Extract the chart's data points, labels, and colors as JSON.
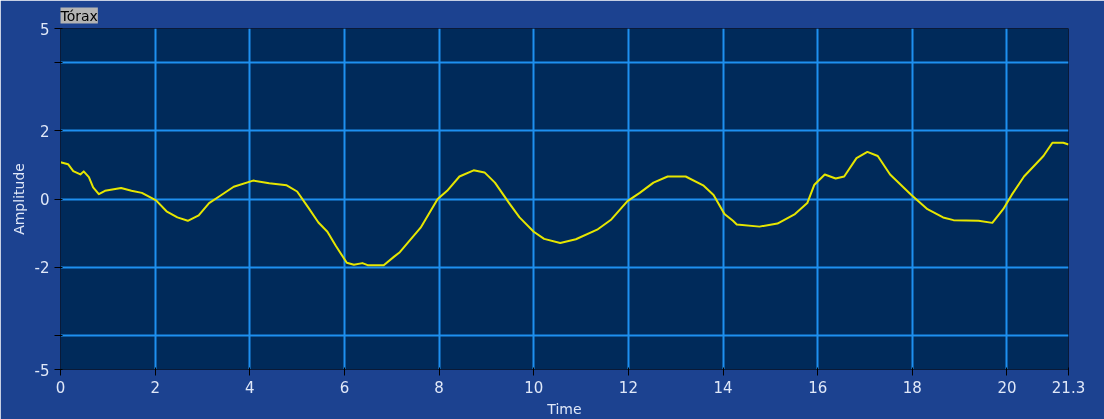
{
  "chart_data": {
    "type": "line",
    "title": "Tórax",
    "xlabel": "Time",
    "ylabel": "Amplitude",
    "x": [
      0,
      0.16,
      0.27,
      0.42,
      0.49,
      0.6,
      0.69,
      0.81,
      0.94,
      1.28,
      1.5,
      1.72,
      2.02,
      2.24,
      2.47,
      2.69,
      2.92,
      3.14,
      3.36,
      3.66,
      4.07,
      4.41,
      4.78,
      5.0,
      5.23,
      5.45,
      5.64,
      5.82,
      6.05,
      6.2,
      6.38,
      6.49,
      6.83,
      7.05,
      7.17,
      7.61,
      7.97,
      8.17,
      8.43,
      8.73,
      8.96,
      9.18,
      9.48,
      9.7,
      10.0,
      10.22,
      10.56,
      10.89,
      11.34,
      11.64,
      11.98,
      12.24,
      12.53,
      12.83,
      13.21,
      13.58,
      13.8,
      14.03,
      14.21,
      14.29,
      14.77,
      15.15,
      15.52,
      15.78,
      15.93,
      16.15,
      16.38,
      16.56,
      16.82,
      17.05,
      17.27,
      17.53,
      17.98,
      18.32,
      18.65,
      18.87,
      19.4,
      19.69,
      19.92,
      20.1,
      20.36,
      20.77,
      20.96,
      21.19,
      21.3
    ],
    "series": [
      {
        "color": "#e6e600",
        "values": [
          1.08,
          1.02,
          0.82,
          0.72,
          0.81,
          0.64,
          0.34,
          0.14,
          0.24,
          0.32,
          0.24,
          0.18,
          -0.04,
          -0.36,
          -0.54,
          -0.64,
          -0.48,
          -0.12,
          0.08,
          0.36,
          0.54,
          0.46,
          0.4,
          0.22,
          -0.24,
          -0.69,
          -0.96,
          -1.38,
          -1.87,
          -1.93,
          -1.88,
          -1.94,
          -1.94,
          -1.69,
          -1.56,
          -0.84,
          0,
          0.24,
          0.66,
          0.84,
          0.78,
          0.48,
          -0.12,
          -0.54,
          -0.96,
          -1.17,
          -1.29,
          -1.18,
          -0.9,
          -0.6,
          -0.06,
          0.18,
          0.48,
          0.66,
          0.66,
          0.4,
          0.12,
          -0.44,
          -0.64,
          -0.75,
          -0.81,
          -0.72,
          -0.44,
          -0.12,
          0.42,
          0.72,
          0.6,
          0.66,
          1.2,
          1.38,
          1.26,
          0.72,
          0.12,
          -0.3,
          -0.54,
          -0.62,
          -0.64,
          -0.7,
          -0.3,
          0.12,
          0.66,
          1.26,
          1.65,
          1.65,
          1.6
        ]
      }
    ],
    "xlim": [
      0,
      21.3
    ],
    "ylim": [
      -5,
      5
    ],
    "xticks": [
      0,
      2,
      4,
      6,
      8,
      10,
      12,
      14,
      16,
      18,
      20,
      21.3
    ],
    "yticks": [
      -5,
      {
        "value": -4,
        "label": null
      },
      -2,
      0,
      2,
      {
        "value": 4,
        "label": null
      },
      5
    ],
    "grid": true
  }
}
